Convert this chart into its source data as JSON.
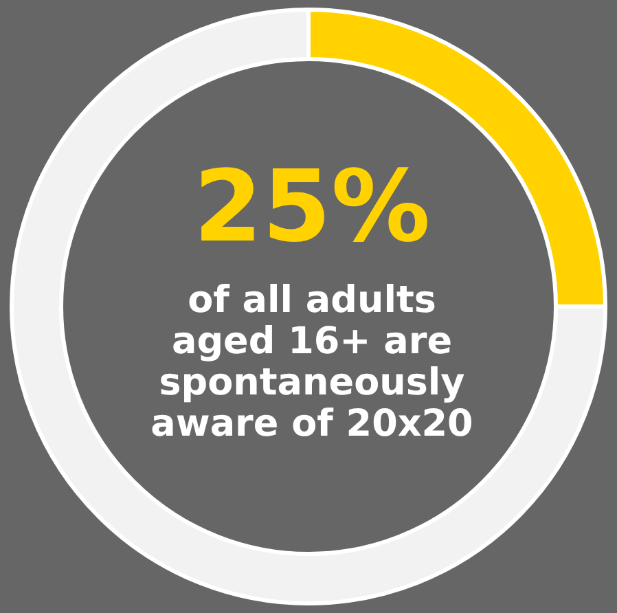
{
  "chart_data": {
    "type": "donut",
    "categories": [
      null,
      null
    ],
    "values": [
      25,
      75
    ],
    "colors": [
      "#ffd200",
      "#f2f2f2"
    ],
    "value_labels": [
      "25%",
      null
    ],
    "annotations": [
      "of all adults aged 16+ are spontaneously aware of 20x20"
    ]
  }
}
